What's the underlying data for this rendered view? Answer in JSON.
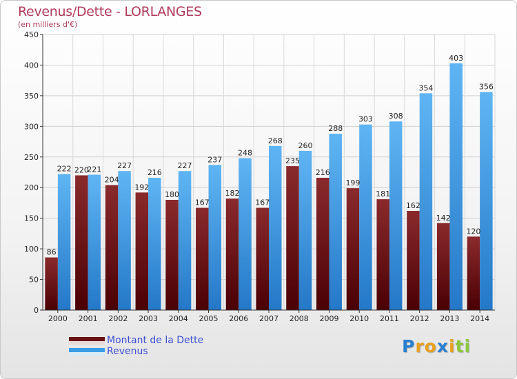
{
  "title": "Revenus/Dette - LORLANGES",
  "subtitle": "(en milliers d'€)",
  "chart_data": {
    "type": "bar",
    "categories": [
      "2000",
      "2001",
      "2002",
      "2003",
      "2004",
      "2005",
      "2006",
      "2007",
      "2008",
      "2009",
      "2010",
      "2011",
      "2012",
      "2013",
      "2014"
    ],
    "series": [
      {
        "name": "Montant de la Dette",
        "color": "#7a1a1f",
        "values": [
          86,
          220,
          204,
          192,
          180,
          167,
          182,
          167,
          235,
          216,
          199,
          181,
          162,
          142,
          120
        ]
      },
      {
        "name": "Revenus",
        "color": "#3a9ee6",
        "values": [
          222,
          221,
          227,
          216,
          227,
          237,
          248,
          268,
          260,
          288,
          303,
          308,
          354,
          403,
          356
        ]
      }
    ],
    "yticks": [
      0,
      50,
      100,
      150,
      200,
      250,
      300,
      350,
      400,
      450
    ],
    "ylim": [
      0,
      450
    ],
    "grid": true,
    "legend_position": "bottom-left"
  },
  "legend": {
    "items": [
      {
        "label": "Montant de la Dette",
        "color": "#7a1a1f"
      },
      {
        "label": "Revenus",
        "color": "#3a9ee6"
      }
    ]
  },
  "logo": {
    "letters": [
      {
        "char": "P",
        "color": "#2a7fd0"
      },
      {
        "char": "r",
        "color": "#e8a020"
      },
      {
        "char": "o",
        "color": "#e8a020"
      },
      {
        "char": "x",
        "color": "#2a7fd0"
      },
      {
        "char": "i",
        "color": "#e8a020"
      },
      {
        "char": "t",
        "color": "#8cc63f"
      },
      {
        "char": "i",
        "color": "#8cc63f"
      }
    ]
  }
}
